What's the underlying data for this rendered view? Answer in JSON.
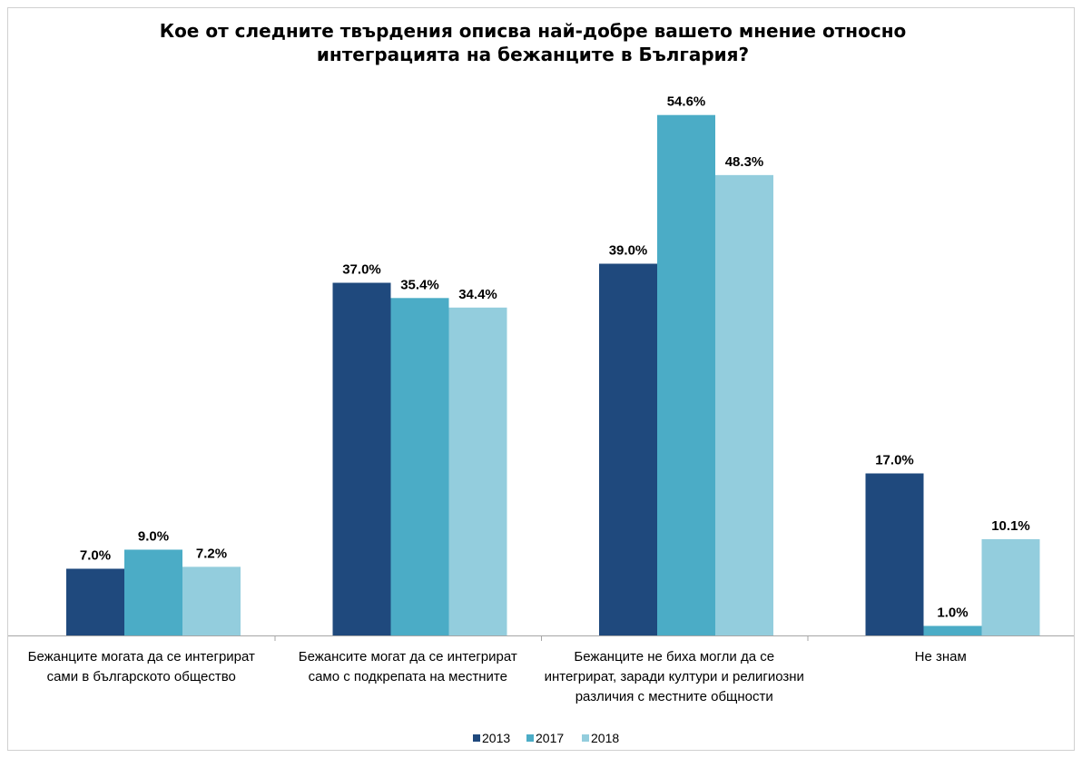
{
  "chart_data": {
    "type": "bar",
    "title_lines": [
      "Кое от следните твърдения описва най-добре вашето мнение относно",
      "интеграцията на бежанците в България?"
    ],
    "categories": [
      [
        "Бежанците могата да се интегрират",
        "сами в българското общество"
      ],
      [
        "Бежансите могат да се интегрират",
        "само с подкрепата на местните"
      ],
      [
        "Бежанците не биха могли да се",
        "интегрират, заради култури и религиозни",
        "различия с местните общности"
      ],
      [
        "Не знам"
      ]
    ],
    "series": [
      {
        "name": "2013",
        "color": "#1f497d",
        "values": [
          7.0,
          37.0,
          39.0,
          17.0
        ]
      },
      {
        "name": "2017",
        "color": "#4bacc6",
        "values": [
          9.0,
          35.4,
          54.6,
          1.0
        ]
      },
      {
        "name": "2018",
        "color": "#93cddd",
        "values": [
          7.2,
          34.4,
          48.3,
          10.1
        ]
      }
    ],
    "value_suffix": "%",
    "decimals": 1,
    "ylim": [
      0,
      60
    ],
    "grid": false,
    "legend_position": "bottom"
  }
}
